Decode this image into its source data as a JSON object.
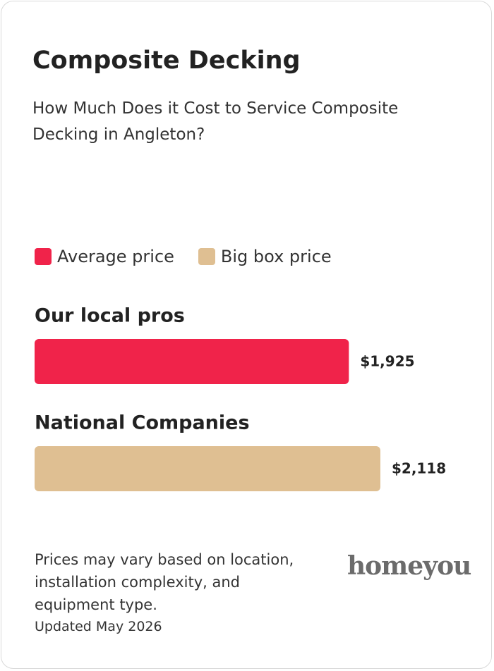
{
  "chart_data": {
    "type": "bar",
    "title": "Composite Decking",
    "subtitle": "How Much Does it Cost to Service Composite Decking in Angleton?",
    "categories": [
      "Our local pros",
      "National Companies"
    ],
    "series": [
      {
        "name": "Average price",
        "color": "#f0234a",
        "values": [
          1925,
          null
        ],
        "value_labels": [
          "$1,925",
          null
        ]
      },
      {
        "name": "Big box price",
        "color": "#dfbf92",
        "values": [
          null,
          2118
        ],
        "value_labels": [
          null,
          "$2,118"
        ]
      }
    ],
    "note": "Prices may vary based on location, installation complexity, and equipment type.",
    "updated": "Updated May 2026",
    "logo": "homeyou"
  }
}
